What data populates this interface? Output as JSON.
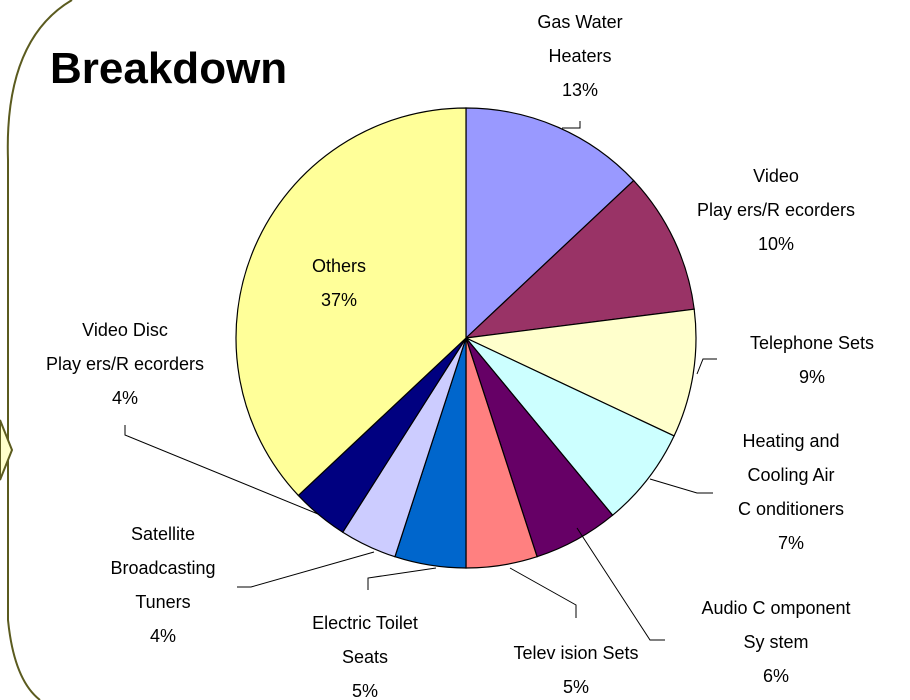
{
  "chart_data": {
    "type": "pie",
    "title": "Breakdown",
    "start_angle_deg": 0,
    "direction": "clockwise",
    "slices": [
      {
        "label_lines": [
          "Gas Water",
          "Heaters"
        ],
        "value": 13,
        "pct_text": "13%",
        "color": "#9999ff"
      },
      {
        "label_lines": [
          "Video",
          "Play ers/R ecorders"
        ],
        "value": 10,
        "pct_text": "10%",
        "color": "#993366"
      },
      {
        "label_lines": [
          "Telephone Sets"
        ],
        "value": 9,
        "pct_text": "9%",
        "color": "#ffffcc"
      },
      {
        "label_lines": [
          "Heating and",
          "Cooling Air",
          "C onditioners"
        ],
        "value": 7,
        "pct_text": "7%",
        "color": "#ccffff"
      },
      {
        "label_lines": [
          "Audio C omponent",
          "Sy stem"
        ],
        "value": 6,
        "pct_text": "6%",
        "color": "#660066"
      },
      {
        "label_lines": [
          "Telev ision Sets"
        ],
        "value": 5,
        "pct_text": "5%",
        "color": "#ff8080"
      },
      {
        "label_lines": [
          "Electric Toilet",
          "Seats"
        ],
        "value": 5,
        "pct_text": "5%",
        "color": "#0066cc"
      },
      {
        "label_lines": [
          "Satellite",
          "Broadcasting",
          "Tuners"
        ],
        "value": 4,
        "pct_text": "4%",
        "color": "#ccccff"
      },
      {
        "label_lines": [
          "Video Disc",
          "Play ers/R ecorders"
        ],
        "value": 4,
        "pct_text": "4%",
        "color": "#000080"
      },
      {
        "label_lines": [
          "Others"
        ],
        "value": 37,
        "pct_text": "37%",
        "color": "#ffff99"
      }
    ]
  }
}
